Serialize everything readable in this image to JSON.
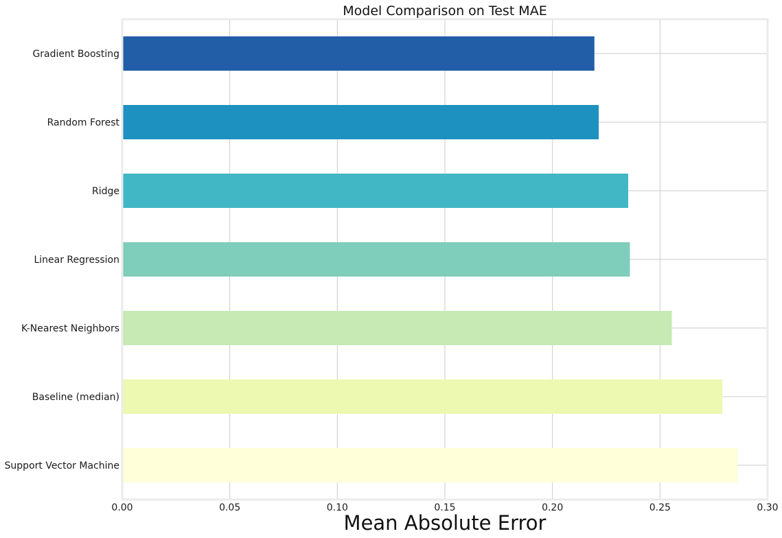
{
  "chart_data": {
    "type": "bar",
    "orientation": "horizontal",
    "title": "Model Comparison on Test MAE",
    "xlabel": "Mean Absolute Error",
    "ylabel": "",
    "xlim": [
      0.0,
      0.3
    ],
    "xticks": [
      "0.00",
      "0.05",
      "0.10",
      "0.15",
      "0.20",
      "0.25",
      "0.30"
    ],
    "grid": true,
    "categories": [
      "Gradient Boosting",
      "Random Forest",
      "Ridge",
      "Linear Regression",
      "K-Nearest Neighbors",
      "Baseline (median)",
      "Support Vector Machine"
    ],
    "values": [
      0.2195,
      0.2215,
      0.2352,
      0.236,
      0.2555,
      0.279,
      0.286
    ],
    "colors": [
      "#225ea8",
      "#1d91c0",
      "#41b6c4",
      "#7fcdbb",
      "#c7e9b4",
      "#edf8b1",
      "#ffffd9"
    ]
  }
}
